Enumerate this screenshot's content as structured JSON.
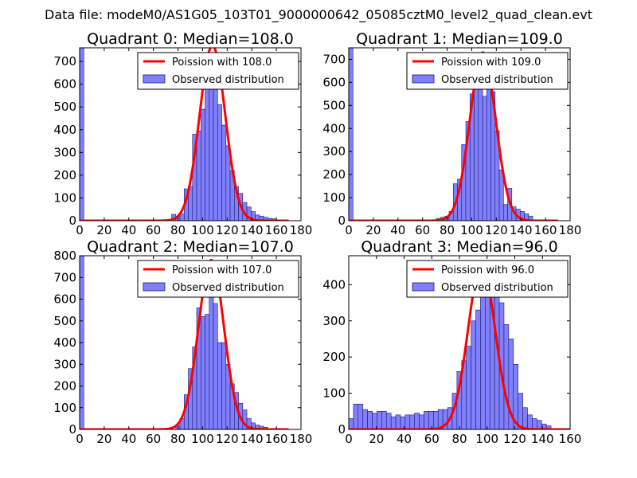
{
  "suptitle": "Data file: modeM0/AS1G05_103T01_9000000642_05085cztM0_level2_quad_clean.evt",
  "colors": {
    "hist_fill": "#8080ff",
    "hist_edge": "#1a1a66",
    "poisson_line": "#ff0000",
    "axis": "#000000"
  },
  "chart_data": [
    {
      "type": "bar",
      "title": "Quadrant 0: Median=108.0",
      "xlim": [
        0,
        180
      ],
      "ylim": [
        0,
        760
      ],
      "xticks": [
        0,
        20,
        40,
        60,
        80,
        100,
        120,
        140,
        160,
        180
      ],
      "yticks": [
        0,
        100,
        200,
        300,
        400,
        500,
        600,
        700
      ],
      "bin_width": 3.4,
      "bins": [
        {
          "x": 0,
          "count": 760
        },
        {
          "x": 74.8,
          "count": 28
        },
        {
          "x": 78.2,
          "count": 20
        },
        {
          "x": 81.6,
          "count": 30
        },
        {
          "x": 85.0,
          "count": 140
        },
        {
          "x": 88.4,
          "count": 150
        },
        {
          "x": 91.8,
          "count": 380
        },
        {
          "x": 95.2,
          "count": 395
        },
        {
          "x": 98.6,
          "count": 490
        },
        {
          "x": 102.0,
          "count": 600
        },
        {
          "x": 105.4,
          "count": 640
        },
        {
          "x": 108.8,
          "count": 650
        },
        {
          "x": 112.2,
          "count": 510
        },
        {
          "x": 115.6,
          "count": 420
        },
        {
          "x": 119.0,
          "count": 330
        },
        {
          "x": 122.4,
          "count": 220
        },
        {
          "x": 125.8,
          "count": 150
        },
        {
          "x": 129.2,
          "count": 120
        },
        {
          "x": 132.6,
          "count": 80
        },
        {
          "x": 136.0,
          "count": 60
        },
        {
          "x": 139.4,
          "count": 40
        },
        {
          "x": 142.8,
          "count": 25
        },
        {
          "x": 146.2,
          "count": 20
        },
        {
          "x": 149.6,
          "count": 15
        },
        {
          "x": 153.0,
          "count": 10
        },
        {
          "x": 156.4,
          "count": 8
        }
      ],
      "poisson": {
        "mean": 108.0,
        "peak": 770
      },
      "legend": {
        "position": "top-right",
        "line_label": "Poission with 108.0",
        "hist_label": "Observed distribution"
      }
    },
    {
      "type": "bar",
      "title": "Quadrant 1: Median=109.0",
      "xlim": [
        0,
        180
      ],
      "ylim": [
        0,
        750
      ],
      "xticks": [
        0,
        20,
        40,
        60,
        80,
        100,
        120,
        140,
        160,
        180
      ],
      "yticks": [
        0,
        100,
        200,
        300,
        400,
        500,
        600,
        700
      ],
      "bin_width": 3.4,
      "bins": [
        {
          "x": 0,
          "count": 750
        },
        {
          "x": 71.4,
          "count": 10
        },
        {
          "x": 74.8,
          "count": 15
        },
        {
          "x": 78.2,
          "count": 20
        },
        {
          "x": 81.6,
          "count": 40
        },
        {
          "x": 85.0,
          "count": 160
        },
        {
          "x": 88.4,
          "count": 180
        },
        {
          "x": 91.8,
          "count": 330
        },
        {
          "x": 95.2,
          "count": 430
        },
        {
          "x": 98.6,
          "count": 550
        },
        {
          "x": 102.0,
          "count": 640
        },
        {
          "x": 105.4,
          "count": 600
        },
        {
          "x": 108.8,
          "count": 540
        },
        {
          "x": 112.2,
          "count": 580
        },
        {
          "x": 115.6,
          "count": 560
        },
        {
          "x": 119.0,
          "count": 390
        },
        {
          "x": 122.4,
          "count": 220
        },
        {
          "x": 125.8,
          "count": 70
        },
        {
          "x": 129.2,
          "count": 140
        },
        {
          "x": 132.6,
          "count": 60
        },
        {
          "x": 136.0,
          "count": 50
        },
        {
          "x": 139.4,
          "count": 40
        },
        {
          "x": 142.8,
          "count": 30
        },
        {
          "x": 146.2,
          "count": 20
        }
      ],
      "poisson": {
        "mean": 109.0,
        "peak": 730
      },
      "legend": {
        "position": "top-right",
        "line_label": "Poission with 109.0",
        "hist_label": "Observed distribution"
      }
    },
    {
      "type": "bar",
      "title": "Quadrant 2: Median=107.0",
      "xlim": [
        0,
        180
      ],
      "ylim": [
        0,
        800
      ],
      "xticks": [
        0,
        20,
        40,
        60,
        80,
        100,
        120,
        140,
        160,
        180
      ],
      "yticks": [
        0,
        100,
        200,
        300,
        400,
        500,
        600,
        700,
        800
      ],
      "bin_width": 3.4,
      "bins": [
        {
          "x": 0,
          "count": 800
        },
        {
          "x": 78.2,
          "count": 20
        },
        {
          "x": 81.6,
          "count": 50
        },
        {
          "x": 85.0,
          "count": 160
        },
        {
          "x": 88.4,
          "count": 280
        },
        {
          "x": 91.8,
          "count": 380
        },
        {
          "x": 95.2,
          "count": 560
        },
        {
          "x": 98.6,
          "count": 520
        },
        {
          "x": 102.0,
          "count": 530
        },
        {
          "x": 105.4,
          "count": 620
        },
        {
          "x": 108.8,
          "count": 580
        },
        {
          "x": 112.2,
          "count": 400
        },
        {
          "x": 115.6,
          "count": 400
        },
        {
          "x": 119.0,
          "count": 300
        },
        {
          "x": 122.4,
          "count": 210
        },
        {
          "x": 125.8,
          "count": 170
        },
        {
          "x": 129.2,
          "count": 120
        },
        {
          "x": 132.6,
          "count": 90
        },
        {
          "x": 136.0,
          "count": 50
        },
        {
          "x": 139.4,
          "count": 30
        },
        {
          "x": 142.8,
          "count": 20
        },
        {
          "x": 146.2,
          "count": 15
        },
        {
          "x": 149.6,
          "count": 10
        }
      ],
      "poisson": {
        "mean": 107.0,
        "peak": 780
      },
      "legend": {
        "position": "top-right",
        "line_label": "Poission with 107.0",
        "hist_label": "Observed distribution"
      }
    },
    {
      "type": "bar",
      "title": "Quadrant 3: Median=96.0",
      "xlim": [
        0,
        160
      ],
      "ylim": [
        0,
        480
      ],
      "xticks": [
        0,
        20,
        40,
        60,
        80,
        100,
        120,
        140,
        160
      ],
      "yticks": [
        0,
        100,
        200,
        300,
        400
      ],
      "bin_width": 3.4,
      "bins": [
        {
          "x": 0,
          "count": 30
        },
        {
          "x": 3.4,
          "count": 70
        },
        {
          "x": 6.8,
          "count": 70
        },
        {
          "x": 10.2,
          "count": 55
        },
        {
          "x": 13.6,
          "count": 50
        },
        {
          "x": 17.0,
          "count": 45
        },
        {
          "x": 20.4,
          "count": 50
        },
        {
          "x": 23.8,
          "count": 50
        },
        {
          "x": 27.2,
          "count": 45
        },
        {
          "x": 30.6,
          "count": 35
        },
        {
          "x": 34.0,
          "count": 40
        },
        {
          "x": 37.4,
          "count": 35
        },
        {
          "x": 40.8,
          "count": 40
        },
        {
          "x": 44.2,
          "count": 40
        },
        {
          "x": 47.6,
          "count": 45
        },
        {
          "x": 51.0,
          "count": 40
        },
        {
          "x": 54.4,
          "count": 50
        },
        {
          "x": 57.8,
          "count": 50
        },
        {
          "x": 61.2,
          "count": 50
        },
        {
          "x": 64.6,
          "count": 55
        },
        {
          "x": 68.0,
          "count": 55
        },
        {
          "x": 71.4,
          "count": 60
        },
        {
          "x": 74.8,
          "count": 100
        },
        {
          "x": 78.2,
          "count": 160
        },
        {
          "x": 81.6,
          "count": 190
        },
        {
          "x": 85.0,
          "count": 230
        },
        {
          "x": 88.4,
          "count": 300
        },
        {
          "x": 91.8,
          "count": 330
        },
        {
          "x": 95.2,
          "count": 400
        },
        {
          "x": 98.6,
          "count": 440
        },
        {
          "x": 102.0,
          "count": 410
        },
        {
          "x": 105.4,
          "count": 380
        },
        {
          "x": 108.8,
          "count": 350
        },
        {
          "x": 112.2,
          "count": 290
        },
        {
          "x": 115.6,
          "count": 250
        },
        {
          "x": 119.0,
          "count": 180
        },
        {
          "x": 122.4,
          "count": 100
        },
        {
          "x": 125.8,
          "count": 60
        },
        {
          "x": 129.2,
          "count": 40
        },
        {
          "x": 132.6,
          "count": 30
        },
        {
          "x": 136.0,
          "count": 25
        },
        {
          "x": 139.4,
          "count": 15
        },
        {
          "x": 142.8,
          "count": 10
        }
      ],
      "poisson": {
        "mean": 96.0,
        "peak": 455
      },
      "legend": {
        "position": "top-right",
        "line_label": "Poission with 96.0",
        "hist_label": "Observed distribution"
      }
    }
  ]
}
